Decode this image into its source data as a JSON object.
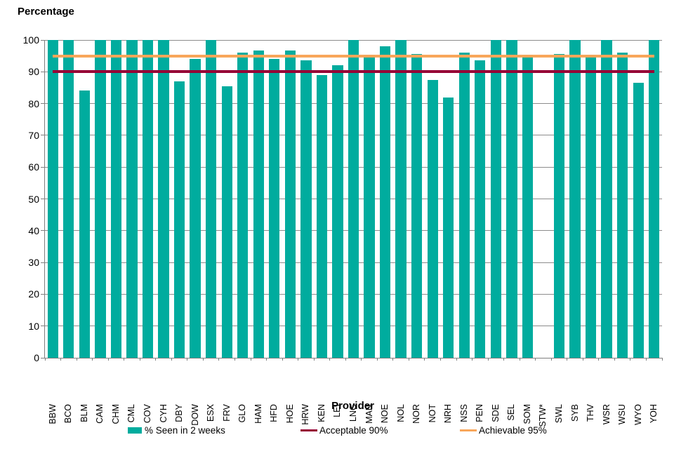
{
  "chart_data": {
    "type": "bar",
    "title": "Percentage",
    "xlabel": "Provider",
    "ylim": [
      0,
      100
    ],
    "ytick_step": 10,
    "grid": "horizontal",
    "legend_position": "bottom",
    "categories": [
      "BBW",
      "BCO",
      "BLM",
      "CAM",
      "CHM",
      "CML",
      "COV",
      "CYH",
      "DBY",
      "DOW",
      "ESX",
      "FRV",
      "GLO",
      "HAM",
      "HFD",
      "HOE",
      "HRW",
      "KEN",
      "LEI",
      "LNC",
      "MAN",
      "NOE",
      "NOL",
      "NOR",
      "NOT",
      "NRH",
      "NSS",
      "PEN",
      "SDE",
      "SEL",
      "SOM",
      "STW*",
      "SWL",
      "SYB",
      "THV",
      "WSR",
      "WSU",
      "WYO",
      "YOH"
    ],
    "series": [
      {
        "name": "% Seen in 2 weeks",
        "color": "#00AC9E",
        "values": [
          100,
          100,
          84,
          100,
          100,
          100,
          100,
          100,
          87,
          94,
          100,
          85.5,
          96,
          96.7,
          94,
          96.7,
          93.5,
          89,
          92,
          100,
          94.5,
          98,
          100,
          95.5,
          87.5,
          82,
          96,
          93.5,
          100,
          100,
          94.5,
          null,
          95.5,
          100,
          94.5,
          100,
          96,
          86.5,
          100
        ]
      }
    ],
    "ref_lines": [
      {
        "name": "Acceptable 90%",
        "value": 90,
        "color": "#960035"
      },
      {
        "name": "Achievable 95%",
        "value": 95,
        "color": "#F8A65A"
      }
    ],
    "axis_color": "#7f7f7f",
    "gridline_color": "#8c8c8c"
  },
  "legend": {
    "items": [
      {
        "label": "% Seen in 2 weeks",
        "swatch": "bar",
        "color": "#00AC9E"
      },
      {
        "label": "Acceptable 90%",
        "swatch": "line",
        "color": "#960035"
      },
      {
        "label": "Achievable 95%",
        "swatch": "line",
        "color": "#F8A65A"
      }
    ]
  }
}
